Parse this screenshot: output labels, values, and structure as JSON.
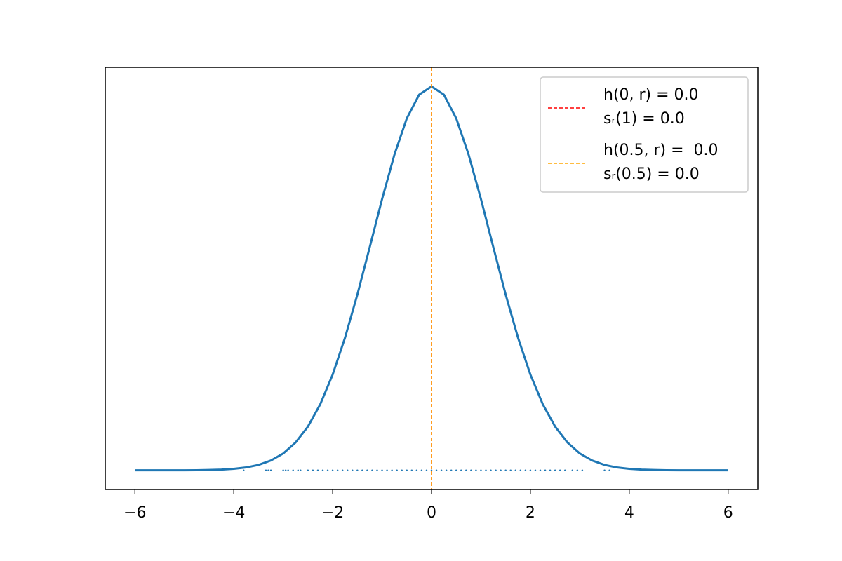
{
  "chart_data": {
    "type": "line",
    "x": [
      -6,
      -5.75,
      -5.5,
      -5.25,
      -5,
      -4.75,
      -4.5,
      -4.25,
      -4,
      -3.75,
      -3.5,
      -3.25,
      -3,
      -2.75,
      -2.5,
      -2.25,
      -2,
      -1.75,
      -1.5,
      -1.25,
      -1,
      -0.75,
      -0.5,
      -0.25,
      0,
      0.25,
      0.5,
      0.75,
      1,
      1.25,
      1.5,
      1.75,
      2,
      2.25,
      2.5,
      2.75,
      3,
      3.25,
      3.5,
      3.75,
      4,
      4.25,
      4.5,
      4.75,
      5,
      5.25,
      5.5,
      5.75,
      6
    ],
    "series": [
      {
        "color": "#1f77b4",
        "values": [
          0,
          0,
          0,
          0,
          0,
          0.0001,
          0.0003,
          0.0006,
          0.0013,
          0.0025,
          0.0047,
          0.0085,
          0.0146,
          0.0241,
          0.0379,
          0.0573,
          0.0829,
          0.1148,
          0.1522,
          0.1932,
          0.2349,
          0.2734,
          0.3048,
          0.3253,
          0.3324,
          0.3253,
          0.3048,
          0.2734,
          0.2349,
          0.1932,
          0.1522,
          0.1148,
          0.0829,
          0.0573,
          0.0379,
          0.0241,
          0.0146,
          0.0085,
          0.0047,
          0.0025,
          0.0013,
          0.0006,
          0.0003,
          0.0001,
          0,
          0,
          0,
          0,
          0
        ]
      }
    ],
    "samples": {
      "color": "#1f77b4",
      "x": [
        -3.8,
        -3.35,
        -3.3,
        -3.25,
        -3.0,
        -2.95,
        -2.9,
        -2.8,
        -2.7,
        -2.65,
        -2.5,
        -2.4,
        -2.3,
        -2.2,
        -2.1,
        -2.0,
        -1.9,
        -1.8,
        -1.7,
        -1.6,
        -1.5,
        -1.4,
        -1.3,
        -1.2,
        -1.1,
        -1.0,
        -0.9,
        -0.8,
        -0.7,
        -0.6,
        -0.5,
        -0.4,
        -0.3,
        -0.2,
        -0.1,
        0.0,
        0.1,
        0.2,
        0.3,
        0.4,
        0.5,
        0.6,
        0.7,
        0.8,
        0.9,
        1.0,
        1.1,
        1.2,
        1.3,
        1.4,
        1.5,
        1.6,
        1.7,
        1.8,
        1.9,
        2.0,
        2.1,
        2.2,
        2.3,
        2.4,
        2.5,
        2.6,
        2.7,
        2.85,
        2.95,
        3.05,
        3.5,
        3.6
      ],
      "y": [
        0,
        0,
        0,
        0,
        0,
        0,
        0,
        0,
        0,
        0,
        0,
        0,
        0,
        0,
        0,
        0,
        0,
        0,
        0,
        0,
        0,
        0,
        0,
        0,
        0,
        0,
        0,
        0,
        0,
        0,
        0,
        0,
        0,
        0,
        0,
        0,
        0,
        0,
        0,
        0,
        0,
        0,
        0,
        0,
        0,
        0,
        0,
        0,
        0,
        0,
        0,
        0,
        0,
        0,
        0,
        0,
        0,
        0,
        0,
        0,
        0,
        0,
        0,
        0,
        0,
        0,
        0,
        0
      ]
    },
    "vlines": [
      {
        "x": 0,
        "color": "red",
        "label": [
          "h(0, r) = 0.0",
          "sᵣ(1) = 0.0"
        ]
      },
      {
        "x": 0,
        "color": "orange",
        "label": [
          "h(0.5, r) =  0.0",
          "sᵣ(0.5) = 0.0"
        ]
      }
    ],
    "xlim": [
      -6.6,
      6.6
    ],
    "ylim": [
      -0.0166,
      0.349
    ],
    "xticks": [
      {
        "value": -6,
        "label": "−6"
      },
      {
        "value": -4,
        "label": "−4"
      },
      {
        "value": -2,
        "label": "−2"
      },
      0,
      2,
      4,
      6
    ],
    "legend": "upper right"
  }
}
